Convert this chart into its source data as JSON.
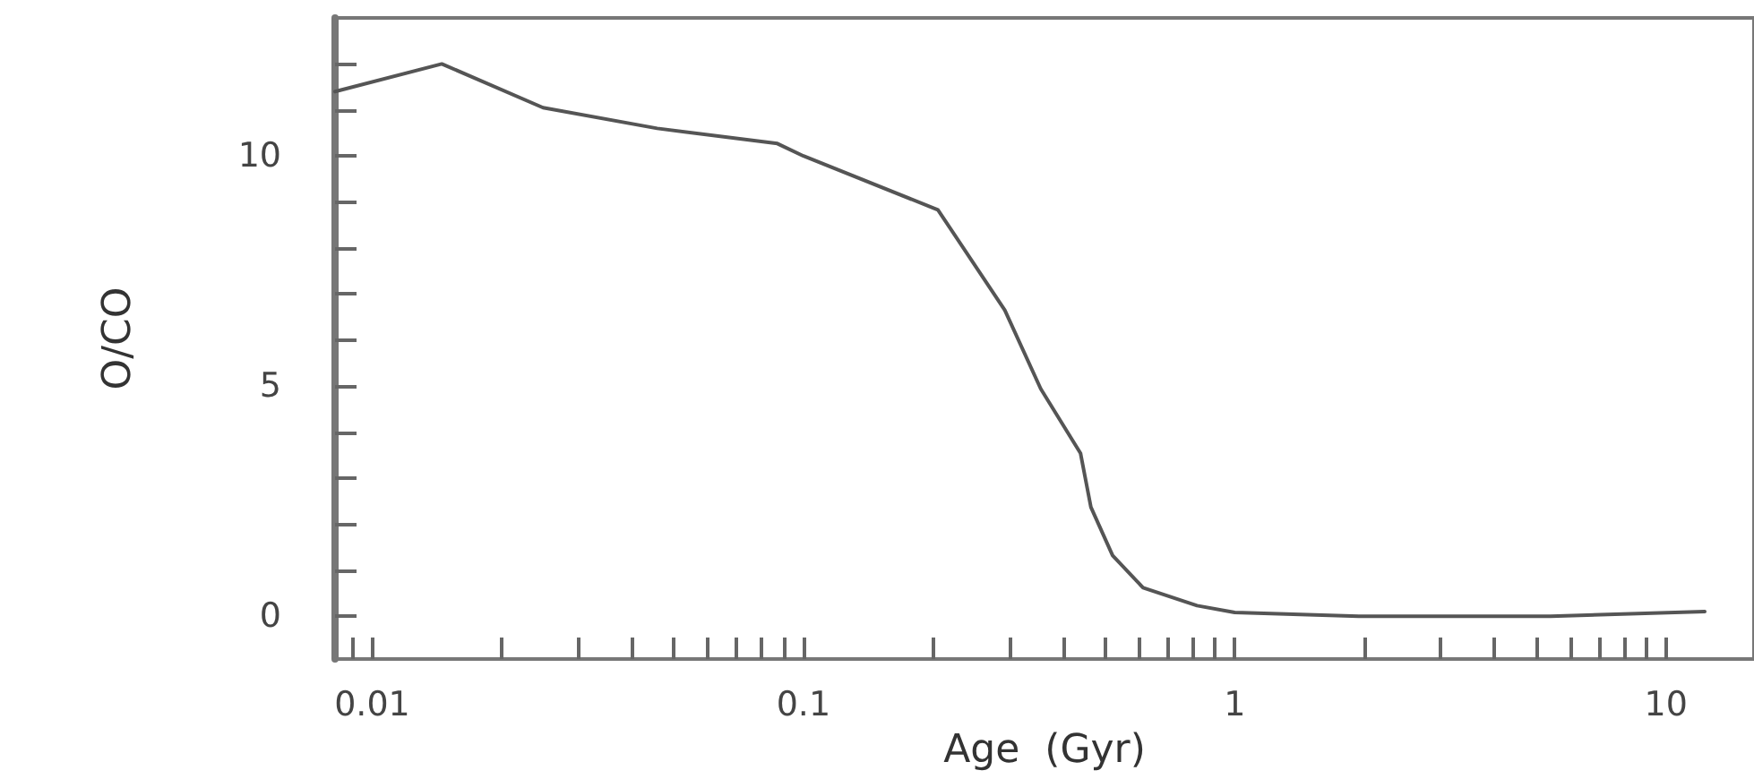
{
  "chart_data": {
    "type": "line",
    "xlabel": "Age  (Gyr)",
    "ylabel": "O/CO",
    "log": "x",
    "marker": "none",
    "line_style": "solid",
    "x": [
      0.0082,
      0.0145,
      0.0249,
      0.0458,
      0.087,
      0.1,
      0.205,
      0.293,
      0.355,
      0.439,
      0.464,
      0.521,
      0.613,
      0.818,
      1.0,
      1.94,
      5.4,
      12.3
    ],
    "series": [
      {
        "color": "#555555",
        "values": [
          11.4,
          12.0,
          11.05,
          10.6,
          10.27,
          10.0,
          8.83,
          6.65,
          4.94,
          3.54,
          2.37,
          1.32,
          0.62,
          0.23,
          0.08,
          0.0,
          0.0,
          0.1
        ]
      }
    ],
    "xlim": [
      0.0082,
      16
    ],
    "xticks": [
      {
        "value": 0.009,
        "label": null
      },
      {
        "value": 0.01,
        "label": "0.01"
      },
      {
        "value": 0.02,
        "label": null
      },
      {
        "value": 0.03,
        "label": null
      },
      {
        "value": 0.04,
        "label": null
      },
      {
        "value": 0.05,
        "label": null
      },
      {
        "value": 0.06,
        "label": null
      },
      {
        "value": 0.07,
        "label": null
      },
      {
        "value": 0.08,
        "label": null
      },
      {
        "value": 0.09,
        "label": null
      },
      {
        "value": 0.1,
        "label": "0.1"
      },
      {
        "value": 0.2,
        "label": null
      },
      {
        "value": 0.3,
        "label": null
      },
      {
        "value": 0.4,
        "label": null
      },
      {
        "value": 0.5,
        "label": null
      },
      {
        "value": 0.6,
        "label": null
      },
      {
        "value": 0.7,
        "label": null
      },
      {
        "value": 0.8,
        "label": null
      },
      {
        "value": 0.9,
        "label": null
      },
      1,
      {
        "value": 2,
        "label": null
      },
      {
        "value": 3,
        "label": null
      },
      {
        "value": 4,
        "label": null
      },
      {
        "value": 5,
        "label": null
      },
      {
        "value": 6,
        "label": null
      },
      {
        "value": 7,
        "label": null
      },
      {
        "value": 8,
        "label": null
      },
      {
        "value": 9,
        "label": null
      },
      10
    ],
    "ylim": [
      -0.93,
      13
    ],
    "yticks": [
      0,
      {
        "value": 1,
        "label": null
      },
      {
        "value": 2,
        "label": null
      },
      {
        "value": 3,
        "label": null
      },
      {
        "value": 4,
        "label": null
      },
      5,
      {
        "value": 6,
        "label": null
      },
      {
        "value": 7,
        "label": null
      },
      {
        "value": 8,
        "label": null
      },
      {
        "value": 9,
        "label": null
      },
      10,
      {
        "value": 11,
        "label": null
      },
      {
        "value": 12,
        "label": null
      }
    ],
    "grid": false
  }
}
